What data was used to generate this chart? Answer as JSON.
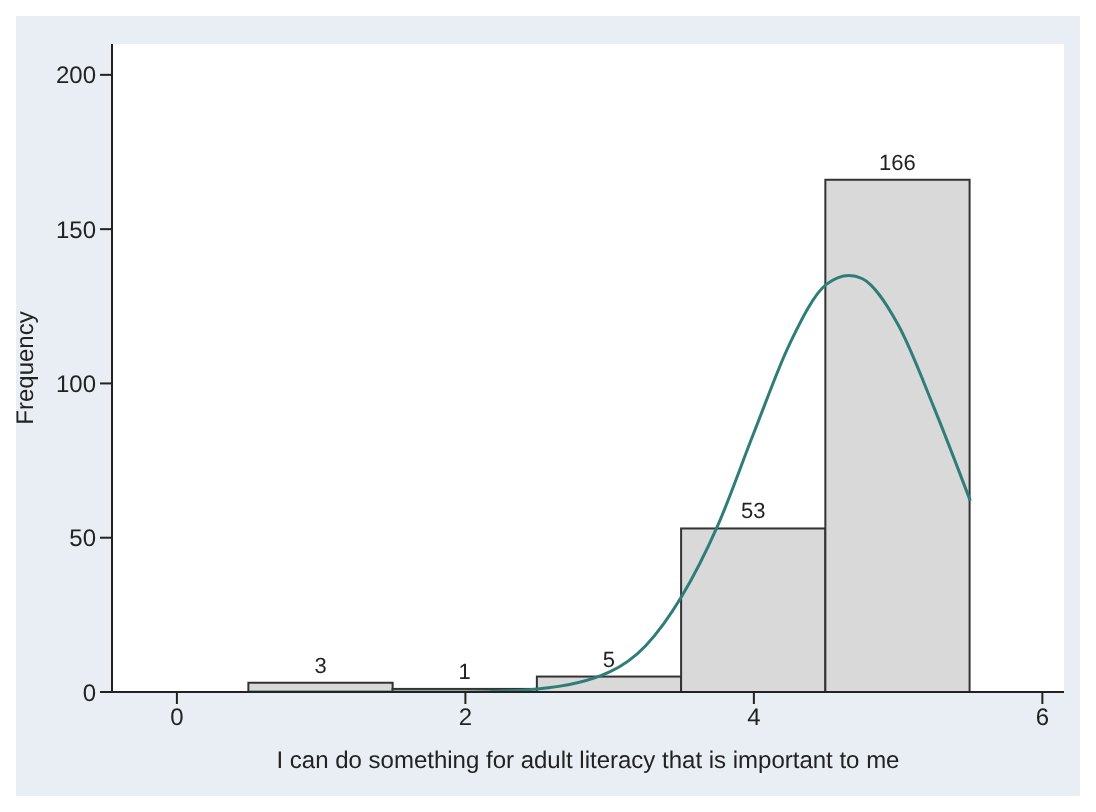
{
  "chart_data": {
    "type": "histogram",
    "xlabel": "I can do something for adult literacy that is important to me",
    "ylabel": "Frequency",
    "bins": [
      0.5,
      1.5,
      2.5,
      3.5,
      4.5,
      5.5
    ],
    "values": [
      3,
      1,
      5,
      53,
      166
    ],
    "color": "#d9d9d9",
    "value_labels": [
      "3",
      "1",
      "5",
      "53",
      "166"
    ],
    "series": [
      {
        "type": "line",
        "color": "#2e7d79",
        "marker": "none",
        "x": [
          0.5,
          1.0,
          1.5,
          2.0,
          2.5,
          3.0,
          3.25,
          3.5,
          3.75,
          4.0,
          4.25,
          4.5,
          4.66,
          4.75,
          5.0,
          5.25,
          5.5
        ],
        "values": [
          0,
          0,
          0,
          0,
          1,
          6.5,
          15,
          31,
          54,
          84,
          113,
          132,
          135,
          134,
          119,
          92,
          62
        ]
      }
    ],
    "xlim": [
      -0.45,
      6.15
    ],
    "xticks": [
      0,
      2,
      4,
      6
    ],
    "ylim": [
      0,
      210
    ],
    "yticks": [
      0,
      50,
      100,
      150,
      200
    ],
    "grid": false,
    "legend": false
  }
}
